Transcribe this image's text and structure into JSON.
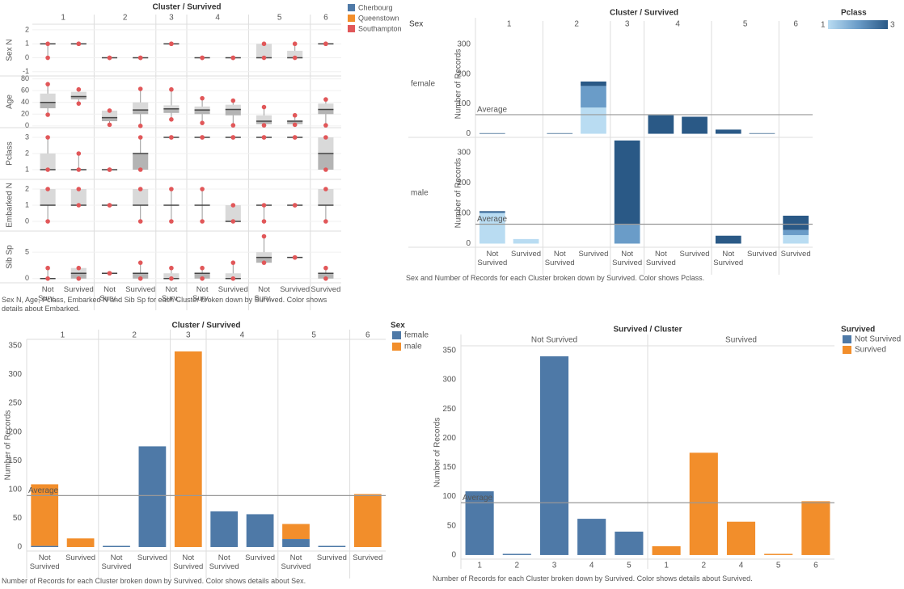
{
  "chart_data": [
    {
      "type": "box",
      "title": "Cluster / Survived",
      "grid": true,
      "groups": [
        {
          "name": "1",
          "columns": [
            "Not Surv..",
            "Survived"
          ]
        },
        {
          "name": "2",
          "columns": [
            "Not Surv..",
            "Survived"
          ]
        },
        {
          "name": "3",
          "columns": [
            "Not Surv.."
          ]
        },
        {
          "name": "4",
          "columns": [
            "Not Surv..",
            "Survived"
          ]
        },
        {
          "name": "5",
          "columns": [
            "Not Surv..",
            "Survived"
          ]
        },
        {
          "name": "6",
          "columns": [
            "Survived"
          ]
        }
      ],
      "rows": [
        {
          "name": "Sex N",
          "ylim": [
            -1.3,
            2.4
          ],
          "yticks": [
            -1,
            0,
            1,
            2
          ],
          "boxes": [
            [
              0,
              1,
              1,
              1,
              1
            ],
            [
              1,
              1,
              1,
              1,
              1
            ],
            [
              0,
              0,
              0,
              0,
              0
            ],
            [
              0,
              0,
              0,
              0,
              0
            ],
            [
              1,
              1,
              1,
              1,
              1
            ],
            [
              0,
              0,
              0,
              0,
              0
            ],
            [
              0,
              0,
              0,
              0,
              0
            ],
            [
              0,
              0,
              0,
              1,
              1
            ],
            [
              0,
              0,
              0,
              0.5,
              1
            ],
            [
              1,
              1,
              1,
              1,
              1
            ]
          ]
        },
        {
          "name": "Age",
          "ylim": [
            -3,
            85
          ],
          "yticks": [
            0,
            20,
            40,
            60,
            80
          ],
          "boxes": [
            [
              19,
              30,
              40,
              55,
              71
            ],
            [
              38,
              45,
              50,
              58,
              62
            ],
            [
              2,
              8,
              14,
              26,
              26
            ],
            [
              0,
              20,
              27,
              40,
              63
            ],
            [
              11,
              22,
              29,
              35,
              62
            ],
            [
              5,
              20,
              27,
              33,
              47
            ],
            [
              1,
              18,
              28,
              36,
              43
            ],
            [
              1,
              3,
              8,
              18,
              32
            ],
            [
              2,
              3,
              8,
              10,
              18
            ],
            [
              1,
              20,
              28,
              38,
              45
            ]
          ]
        },
        {
          "name": "Pclass",
          "ylim": [
            0.4,
            3.6
          ],
          "yticks": [
            1,
            2,
            3
          ],
          "boxes": [
            [
              1,
              1,
              1,
              2,
              3
            ],
            [
              1,
              1,
              1,
              1,
              2
            ],
            [
              1,
              1,
              1,
              1,
              1
            ],
            [
              1,
              1,
              2,
              2,
              3
            ],
            [
              3,
              3,
              3,
              3,
              3
            ],
            [
              3,
              3,
              3,
              3,
              3
            ],
            [
              3,
              3,
              3,
              3,
              3
            ],
            [
              3,
              3,
              3,
              3,
              3
            ],
            [
              3,
              3,
              3,
              3,
              3
            ],
            [
              1,
              1,
              2,
              3,
              3
            ]
          ]
        },
        {
          "name": "Embarked N",
          "ylim": [
            -0.6,
            2.6
          ],
          "yticks": [
            0,
            1,
            2
          ],
          "boxes": [
            [
              0,
              1,
              1,
              2,
              2
            ],
            [
              1,
              1,
              1,
              2,
              2
            ],
            [
              1,
              1,
              1,
              1,
              1
            ],
            [
              0,
              1,
              1,
              2,
              2
            ],
            [
              0,
              1,
              1,
              1,
              2
            ],
            [
              0,
              1,
              1,
              1,
              2
            ],
            [
              0,
              0,
              0,
              1,
              1
            ],
            [
              0,
              1,
              1,
              1,
              1
            ],
            [
              1,
              1,
              1,
              1,
              1
            ],
            [
              0,
              1,
              1,
              2,
              2
            ]
          ]
        },
        {
          "name": "Sib Sp",
          "ylim": [
            -0.8,
            9
          ],
          "yticks": [
            0,
            5
          ],
          "boxes": [
            [
              0,
              0,
              0,
              0,
              2
            ],
            [
              0,
              0,
              1,
              2,
              2
            ],
            [
              1,
              1,
              1,
              1,
              1
            ],
            [
              0,
              0,
              1,
              1,
              3
            ],
            [
              0,
              0,
              0,
              1,
              2
            ],
            [
              0,
              0,
              1,
              1,
              2
            ],
            [
              0,
              0,
              0,
              1,
              3
            ],
            [
              3,
              3,
              4,
              5,
              8
            ],
            [
              4,
              4,
              4,
              4,
              4
            ],
            [
              0,
              0,
              1,
              1,
              2
            ]
          ]
        }
      ],
      "legend": [
        {
          "name": "Cherbourg",
          "color": "#4e79a7"
        },
        {
          "name": "Queenstown",
          "color": "#f28e2b"
        },
        {
          "name": "Southampton",
          "color": "#e15759"
        }
      ],
      "caption": "Sex N, Age, Pclass, Embarked N and Sib Sp for each Cluster broken down by Survived.  Color shows details about Embarked."
    },
    {
      "type": "stacked_bar",
      "title": "Cluster / Survived",
      "facet_label": "Sex",
      "y_label": "Number of Records",
      "ylim": [
        -12,
        345
      ],
      "yticks": [
        0,
        100,
        200,
        300
      ],
      "average": 63.9,
      "reference_label": "Average",
      "groups": [
        {
          "name": "1",
          "columns": [
            "Not Survived",
            "Survived"
          ]
        },
        {
          "name": "2",
          "columns": [
            "Not Survived",
            "Survived"
          ]
        },
        {
          "name": "3",
          "columns": [
            "Not Survived"
          ]
        },
        {
          "name": "4",
          "columns": [
            "Not Survived",
            "Survived"
          ]
        },
        {
          "name": "5",
          "columns": [
            "Not Survived",
            "Survived"
          ]
        },
        {
          "name": "6",
          "columns": [
            "Survived"
          ]
        }
      ],
      "legend_title": "Pclass",
      "color_levels": [
        {
          "value": 1,
          "color": "#b9dcf2"
        },
        {
          "value": 2,
          "color": "#6a9cc8"
        },
        {
          "value": 3,
          "color": "#2a5986"
        }
      ],
      "panels": [
        {
          "name": "female",
          "values": [
            [
              0,
              0,
              0,
              88,
              0,
              0,
              0,
              0,
              0,
              0
            ],
            [
              0,
              0,
              0,
              72,
              0,
              0,
              0,
              0,
              0,
              0
            ],
            [
              2,
              0,
              2,
              15,
              0,
              62,
              57,
              14,
              2,
              0
            ]
          ]
        },
        {
          "name": "male",
          "values": [
            [
              100,
              15,
              0,
              0,
              0,
              0,
              0,
              0,
              0,
              28
            ],
            [
              3,
              0,
              0,
              0,
              62,
              0,
              0,
              0,
              0,
              17
            ],
            [
              4,
              0,
              0,
              0,
              278,
              0,
              0,
              26,
              0,
              47
            ]
          ]
        }
      ],
      "caption": "Sex and Number of Records for each Cluster broken down by Survived.  Color shows Pclass."
    },
    {
      "type": "stacked_bar",
      "title": "Cluster / Survived",
      "y_label": "Number of Records",
      "ylim": [
        -7,
        361
      ],
      "yticks": [
        0,
        50,
        100,
        150,
        200,
        250,
        300,
        350
      ],
      "average": 89.4,
      "reference_label": "Average",
      "groups": [
        {
          "name": "1",
          "columns": [
            "Not Survived",
            "Survived"
          ]
        },
        {
          "name": "2",
          "columns": [
            "Not Survived",
            "Survived"
          ]
        },
        {
          "name": "3",
          "columns": [
            "Not Survived"
          ]
        },
        {
          "name": "4",
          "columns": [
            "Not Survived",
            "Survived"
          ]
        },
        {
          "name": "5",
          "columns": [
            "Not Survived",
            "Survived"
          ]
        },
        {
          "name": "6",
          "columns": [
            "Survived"
          ]
        }
      ],
      "legend_title": "Sex",
      "series": [
        {
          "name": "female",
          "color": "#4e79a7",
          "values": [
            2,
            0,
            2,
            175,
            0,
            62,
            57,
            14,
            2,
            0
          ]
        },
        {
          "name": "male",
          "color": "#f28e2b",
          "values": [
            107,
            15,
            0,
            0,
            340,
            0,
            0,
            26,
            0,
            92
          ]
        }
      ],
      "caption": "Number of Records for each Cluster broken down by Survived.  Color shows details about Sex."
    },
    {
      "type": "bar",
      "title": "Survived / Cluster",
      "y_label": "Number of Records",
      "ylim": [
        -7,
        358
      ],
      "yticks": [
        0,
        50,
        100,
        150,
        200,
        250,
        300,
        350
      ],
      "average": 89.4,
      "reference_label": "Average",
      "legend_title": "Survived",
      "groups": [
        {
          "name": "Not Survived",
          "color": "#4e79a7",
          "categories": [
            "1",
            "2",
            "3",
            "4",
            "5"
          ],
          "values": [
            109,
            2,
            340,
            62,
            40
          ]
        },
        {
          "name": "Survived",
          "color": "#f28e2b",
          "categories": [
            "1",
            "2",
            "4",
            "5",
            "6"
          ],
          "values": [
            15,
            175,
            57,
            2,
            92
          ]
        }
      ],
      "caption": "Number of Records for each Cluster broken down by Survived.  Color shows details about Survived."
    }
  ]
}
